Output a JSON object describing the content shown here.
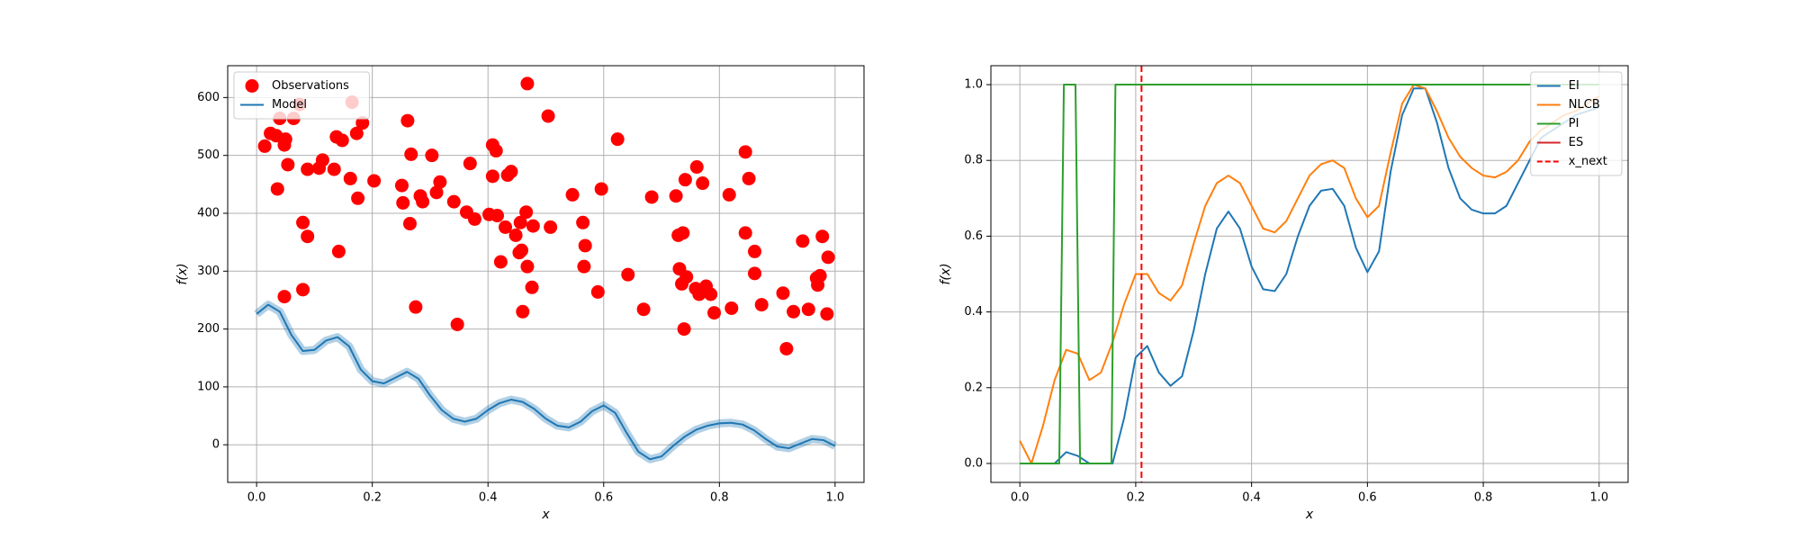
{
  "chart_data": [
    {
      "type": "scatter",
      "xlabel": "x",
      "ylabel": "f(x)",
      "xlim": [
        -0.05,
        1.05
      ],
      "ylim": [
        -65,
        655
      ],
      "xticks": [
        {
          "value": 0,
          "label": "0.0"
        },
        0.2,
        0.4,
        0.6,
        0.8,
        {
          "value": 1,
          "label": "1.0"
        }
      ],
      "yticks": [
        0,
        100,
        200,
        300,
        400,
        500,
        600
      ],
      "grid": true,
      "legend": "upper left",
      "series": [
        {
          "name": "Observations",
          "type": "scatter",
          "color": "#ff0000",
          "x": [
            0.014,
            0.024,
            0.034,
            0.04,
            0.036,
            0.048,
            0.05,
            0.054,
            0.048,
            0.064,
            0.074,
            0.08,
            0.08,
            0.088,
            0.088,
            0.108,
            0.114,
            0.134,
            0.138,
            0.142,
            0.148,
            0.162,
            0.165,
            0.173,
            0.175,
            0.183,
            0.203,
            0.251,
            0.253,
            0.261,
            0.265,
            0.267,
            0.275,
            0.283,
            0.287,
            0.303,
            0.311,
            0.317,
            0.341,
            0.347,
            0.363,
            0.369,
            0.377,
            0.402,
            0.408,
            0.408,
            0.414,
            0.416,
            0.422,
            0.43,
            0.434,
            0.44,
            0.448,
            0.456,
            0.454,
            0.458,
            0.46,
            0.466,
            0.468,
            0.468,
            0.476,
            0.478,
            0.504,
            0.508,
            0.546,
            0.564,
            0.566,
            0.568,
            0.59,
            0.596,
            0.624,
            0.642,
            0.669,
            0.683,
            0.725,
            0.729,
            0.731,
            0.737,
            0.735,
            0.739,
            0.741,
            0.743,
            0.759,
            0.761,
            0.765,
            0.771,
            0.777,
            0.785,
            0.791,
            0.817,
            0.821,
            0.845,
            0.845,
            0.851,
            0.861,
            0.861,
            0.873,
            0.91,
            0.916,
            0.928,
            0.944,
            0.954,
            0.968,
            0.97,
            0.974,
            0.978,
            0.986,
            0.988
          ],
          "values": [
            516,
            538,
            534,
            564,
            442,
            518,
            528,
            484,
            256,
            564,
            588,
            384,
            268,
            360,
            476,
            478,
            492,
            476,
            532,
            334,
            526,
            460,
            592,
            538,
            426,
            556,
            456,
            448,
            418,
            560,
            382,
            502,
            238,
            430,
            420,
            500,
            436,
            454,
            420,
            208,
            402,
            486,
            390,
            398,
            518,
            464,
            508,
            396,
            316,
            376,
            466,
            472,
            362,
            384,
            332,
            336,
            230,
            402,
            624,
            308,
            272,
            378,
            568,
            376,
            432,
            384,
            308,
            344,
            264,
            442,
            528,
            294,
            234,
            428,
            430,
            362,
            304,
            366,
            278,
            200,
            458,
            290,
            270,
            480,
            260,
            452,
            274,
            260,
            228,
            432,
            236,
            506,
            366,
            460,
            334,
            296,
            242,
            262,
            166,
            230,
            352,
            234,
            288,
            276,
            292,
            360,
            226,
            324
          ]
        },
        {
          "name": "Model",
          "type": "line",
          "color": "#1f77b4",
          "x": [
            0,
            0.02,
            0.04,
            0.06,
            0.08,
            0.1,
            0.12,
            0.14,
            0.16,
            0.18,
            0.2,
            0.22,
            0.24,
            0.26,
            0.28,
            0.3,
            0.32,
            0.34,
            0.36,
            0.38,
            0.4,
            0.42,
            0.44,
            0.46,
            0.48,
            0.5,
            0.52,
            0.54,
            0.56,
            0.58,
            0.6,
            0.62,
            0.64,
            0.66,
            0.68,
            0.7,
            0.72,
            0.74,
            0.76,
            0.78,
            0.8,
            0.82,
            0.84,
            0.86,
            0.88,
            0.9,
            0.92,
            0.94,
            0.96,
            0.98,
            1
          ],
          "values": [
            226,
            242,
            230,
            190,
            162,
            164,
            180,
            186,
            170,
            130,
            110,
            106,
            116,
            126,
            114,
            85,
            60,
            45,
            40,
            45,
            60,
            72,
            78,
            74,
            62,
            45,
            33,
            30,
            40,
            58,
            68,
            55,
            20,
            -12,
            -25,
            -20,
            -2,
            14,
            26,
            33,
            37,
            38,
            35,
            25,
            10,
            -3,
            -6,
            2,
            10,
            8,
            -2
          ]
        }
      ]
    },
    {
      "type": "line",
      "xlabel": "x",
      "ylabel": "f(x)",
      "xlim": [
        -0.05,
        1.05
      ],
      "ylim": [
        -0.05,
        1.05
      ],
      "xticks": [
        {
          "value": 0,
          "label": "0.0"
        },
        0.2,
        0.4,
        0.6,
        0.8,
        {
          "value": 1,
          "label": "1.0"
        }
      ],
      "yticks": [
        {
          "value": 0,
          "label": "0.0"
        },
        0.2,
        0.4,
        0.6,
        0.8,
        {
          "value": 1,
          "label": "1.0"
        }
      ],
      "grid": true,
      "legend": "upper right",
      "series": [
        {
          "name": "EI",
          "type": "line",
          "color": "#1f77b4",
          "x": [
            0,
            0.02,
            0.04,
            0.06,
            0.08,
            0.1,
            0.12,
            0.14,
            0.16,
            0.18,
            0.2,
            0.22,
            0.24,
            0.26,
            0.28,
            0.3,
            0.32,
            0.34,
            0.36,
            0.38,
            0.4,
            0.42,
            0.44,
            0.46,
            0.48,
            0.5,
            0.52,
            0.54,
            0.56,
            0.58,
            0.6,
            0.62,
            0.64,
            0.66,
            0.68,
            0.7,
            0.72,
            0.74,
            0.76,
            0.78,
            0.8,
            0.82,
            0.84,
            0.86,
            0.88,
            0.9,
            0.92,
            0.94,
            0.96,
            0.98,
            1
          ],
          "values": [
            0,
            0,
            0,
            0,
            0.03,
            0.02,
            0,
            0,
            0,
            0.12,
            0.28,
            0.31,
            0.24,
            0.205,
            0.23,
            0.35,
            0.5,
            0.62,
            0.665,
            0.62,
            0.52,
            0.46,
            0.455,
            0.5,
            0.6,
            0.68,
            0.72,
            0.725,
            0.68,
            0.57,
            0.505,
            0.56,
            0.77,
            0.92,
            0.99,
            0.99,
            0.9,
            0.78,
            0.7,
            0.67,
            0.66,
            0.66,
            0.68,
            0.74,
            0.8,
            0.86,
            0.88,
            0.9,
            0.92,
            0.93,
            0.94
          ]
        },
        {
          "name": "NLCB",
          "type": "line",
          "color": "#ff7f0e",
          "x": [
            0,
            0.02,
            0.04,
            0.06,
            0.08,
            0.1,
            0.12,
            0.14,
            0.16,
            0.18,
            0.2,
            0.22,
            0.24,
            0.26,
            0.28,
            0.3,
            0.32,
            0.34,
            0.36,
            0.38,
            0.4,
            0.42,
            0.44,
            0.46,
            0.48,
            0.5,
            0.52,
            0.54,
            0.56,
            0.58,
            0.6,
            0.62,
            0.64,
            0.66,
            0.68,
            0.7,
            0.72,
            0.74,
            0.76,
            0.78,
            0.8,
            0.82,
            0.84,
            0.86,
            0.88,
            0.9,
            0.92,
            0.94,
            0.96,
            0.98,
            1
          ],
          "values": [
            0.06,
            0,
            0.1,
            0.22,
            0.3,
            0.29,
            0.22,
            0.24,
            0.32,
            0.42,
            0.5,
            0.5,
            0.45,
            0.43,
            0.47,
            0.58,
            0.68,
            0.74,
            0.76,
            0.74,
            0.68,
            0.62,
            0.61,
            0.64,
            0.7,
            0.76,
            0.79,
            0.8,
            0.78,
            0.7,
            0.65,
            0.68,
            0.82,
            0.95,
            1.0,
            0.99,
            0.93,
            0.86,
            0.81,
            0.78,
            0.76,
            0.755,
            0.77,
            0.8,
            0.85,
            0.88,
            0.9,
            0.92,
            0.93,
            0.95,
            0.97
          ]
        },
        {
          "name": "PI",
          "type": "line",
          "color": "#2ca02c",
          "x": [
            0,
            0.068,
            0.076,
            0.096,
            0.104,
            0.158,
            0.165,
            1
          ],
          "values": [
            0,
            0,
            1,
            1,
            0,
            0,
            1,
            1
          ]
        },
        {
          "name": "ES",
          "type": "line",
          "color": "#d62728",
          "x": [
            0,
            1
          ],
          "values": [
            null,
            null
          ]
        },
        {
          "name": "x_next",
          "type": "vline",
          "color": "#ff0000",
          "dashed": true,
          "x": 0.21
        }
      ]
    }
  ]
}
